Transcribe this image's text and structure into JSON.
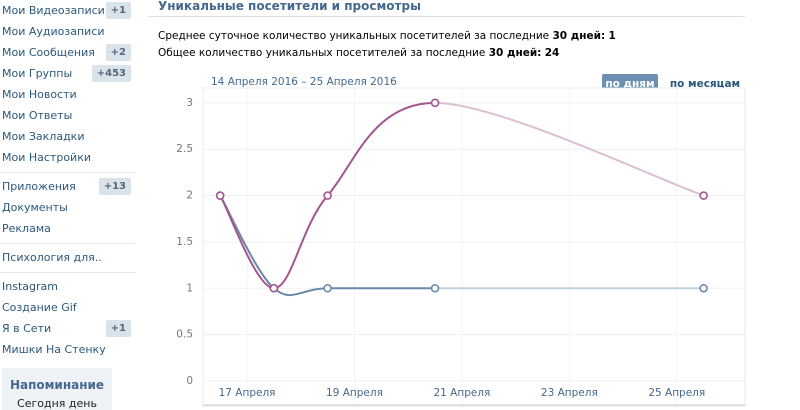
{
  "sidebar": {
    "sections": [
      [
        {
          "label": "Мои Видеозаписи",
          "badge": "+1"
        },
        {
          "label": "Мои Аудиозаписи"
        },
        {
          "label": "Мои Сообщения",
          "badge": "+2"
        },
        {
          "label": "Мои Группы",
          "badge": "+453"
        },
        {
          "label": "Мои Новости"
        },
        {
          "label": "Мои Ответы"
        },
        {
          "label": "Мои Закладки"
        },
        {
          "label": "Мои Настройки"
        }
      ],
      [
        {
          "label": "Приложения",
          "badge": "+13"
        },
        {
          "label": "Документы"
        },
        {
          "label": "Реклама"
        }
      ],
      [
        {
          "label": "Психология для.."
        }
      ],
      [
        {
          "label": "Instagram"
        },
        {
          "label": "Создание Gif"
        },
        {
          "label": "Я в Сети",
          "badge": "+1"
        },
        {
          "label": "Мишки На Стенку"
        }
      ]
    ]
  },
  "reminder": {
    "title": "Напоминание",
    "text": "Сегодня день"
  },
  "page": {
    "title": "Уникальные посетители и просмотры",
    "stats": [
      {
        "text": "Среднее суточное количество уникальных посетителей за последние",
        "period": "30 дней:",
        "value": "1"
      },
      {
        "text": "Общее количество уникальных посетителей за последние",
        "period": "30 дней:",
        "value": "24"
      }
    ]
  },
  "chart_data": {
    "type": "line",
    "subtitle": "14 Апреля 2016 – 25 Апреля 2016",
    "toggles": [
      "по дням",
      "по месяцам"
    ],
    "active_toggle": 0,
    "x": [
      16.5,
      17.5,
      18.5,
      20.5,
      25.5
    ],
    "xlim": [
      16.18,
      26.27
    ],
    "xticks": [
      {
        "value": 17,
        "label": "17 Апреля"
      },
      {
        "value": 19,
        "label": "19 Апреля"
      },
      {
        "value": 21,
        "label": "21 Апреля"
      },
      {
        "value": 23,
        "label": "23 Апреля"
      },
      {
        "value": 25,
        "label": "25 Апреля"
      }
    ],
    "ylim": [
      -0.27,
      3.16
    ],
    "yticks": [
      0,
      0.5,
      1,
      1.5,
      2,
      2.5,
      3
    ],
    "grid": true,
    "series": [
      {
        "color": "#6a88aa",
        "tail_color": "#c3d0de",
        "values": [
          2,
          1,
          1,
          1,
          1
        ]
      },
      {
        "color": "#a3558f",
        "tail_color": "#dcbfd3",
        "values": [
          2,
          1,
          2,
          3,
          2
        ]
      }
    ]
  }
}
